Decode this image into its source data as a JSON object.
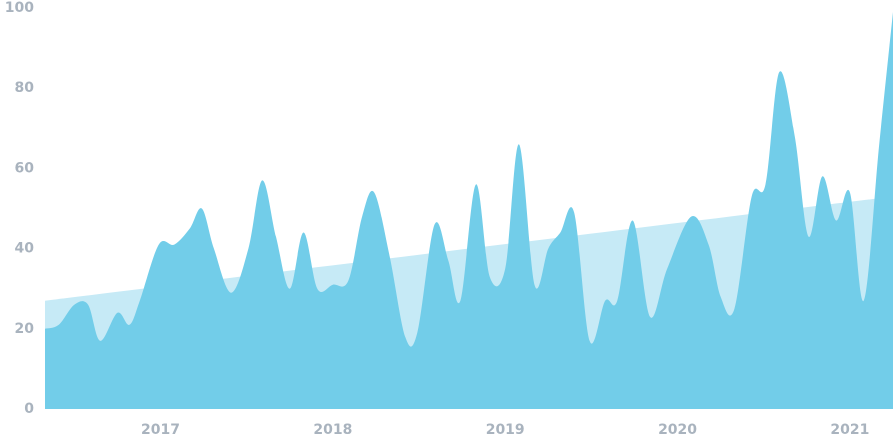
{
  "chart_data": {
    "type": "area",
    "x": [
      2016.33,
      2016.41,
      2016.5,
      2016.58,
      2016.65,
      2016.75,
      2016.82,
      2016.88,
      2016.99,
      2017.08,
      2017.17,
      2017.24,
      2017.31,
      2017.41,
      2017.51,
      2017.59,
      2017.67,
      2017.75,
      2017.83,
      2017.91,
      2018.0,
      2018.09,
      2018.17,
      2018.24,
      2018.33,
      2018.42,
      2018.49,
      2018.59,
      2018.67,
      2018.74,
      2018.83,
      2018.91,
      2019.0,
      2019.08,
      2019.17,
      2019.25,
      2019.32,
      2019.4,
      2019.49,
      2019.58,
      2019.65,
      2019.74,
      2019.84,
      2019.94,
      2020.08,
      2020.18,
      2020.25,
      2020.33,
      2020.43,
      2020.51,
      2020.59,
      2020.68,
      2020.76,
      2020.84,
      2020.92,
      2021.0,
      2021.08,
      2021.17,
      2021.25
    ],
    "series": [
      {
        "color": "#72cde9",
        "values": [
          20,
          21,
          26,
          26,
          17,
          24,
          21,
          27,
          41,
          41,
          45,
          50,
          40,
          29,
          40,
          57,
          43,
          30,
          44,
          30,
          31,
          32,
          48,
          54,
          38,
          18,
          19,
          46,
          37,
          27,
          56,
          33,
          35,
          66,
          31,
          40,
          44,
          49,
          17,
          27,
          27,
          47,
          23,
          35,
          48,
          41,
          28,
          25,
          53,
          56,
          84,
          68,
          43,
          58,
          47,
          54,
          27,
          66,
          99
        ]
      },
      {
        "color": "#c6eaf6",
        "x": [
          2016.33,
          2021.25
        ],
        "values": [
          27,
          53
        ]
      }
    ],
    "xlim": [
      2016.33,
      2021.25
    ],
    "xticks": [
      2017,
      2018,
      2019,
      2020,
      2021
    ],
    "ylim": [
      0,
      100
    ],
    "yticks": [
      0,
      20,
      40,
      60,
      80,
      100
    ]
  }
}
